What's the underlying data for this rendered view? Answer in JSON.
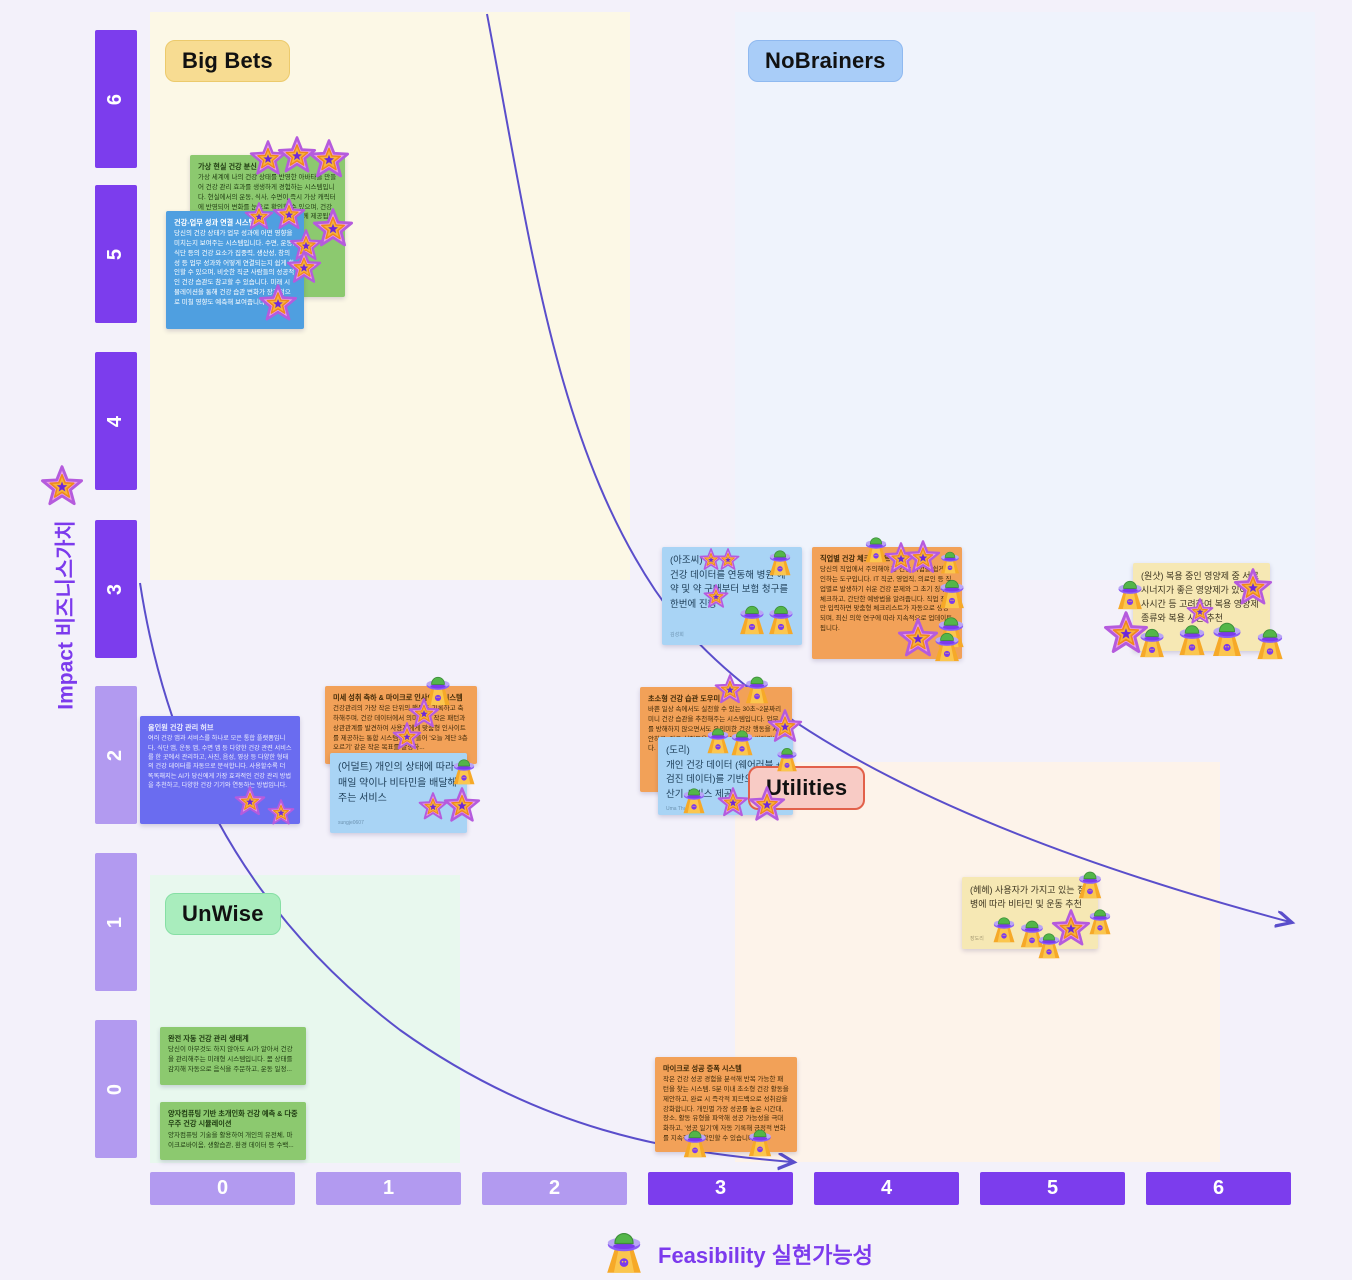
{
  "quadrants": {
    "big_bets": {
      "label": "Big Bets",
      "color": "#f7dc92"
    },
    "nobrainers": {
      "label": "NoBrainers",
      "color": "#a9cdf8"
    },
    "unwise": {
      "label": "UnWise",
      "color": "#a9edbd"
    },
    "utilities": {
      "label": "Utilities",
      "color": "#f8cbc5"
    }
  },
  "axes": {
    "y": {
      "label_en": "Impact",
      "label_ko": "비즈니스가치",
      "ticks": [
        "6",
        "5",
        "4",
        "3",
        "2",
        "1",
        "0"
      ],
      "dark_color": "#7c3ded",
      "light_color": "#b29af0"
    },
    "x": {
      "label_en": "Feasibility",
      "label_ko": "실현가능성",
      "ticks": [
        "0",
        "1",
        "2",
        "3",
        "4",
        "5",
        "6"
      ]
    }
  },
  "icons": {
    "star": "star-sticker",
    "ufo": "ufo-sticker"
  },
  "curve_color": "#5a4ecb",
  "notes": [
    {
      "title": "가상 현실 건강 분신",
      "body": "가상 세계에 나의 건강 상태를 반영한 아바타를 만들어 건강 관리 효과를 생생하게 경험하는 시스템입니다. 현실에서의 운동, 식사, 수면이 즉시 가상 캐릭터에 반영되어 변화를 눈으로 확인할 수 있으며, 건강 목표를 달성하도록 돕는 가상 코치도 함께 제공됩니다.",
      "author": "",
      "color": "green"
    },
    {
      "title": "건강-업무 성과 연결 시스템",
      "body": "당신의 건강 상태가 업무 성과에 어떤 영향을 미치는지 보여주는 시스템입니다. 수면, 운동, 식단 등의 건강 요소가 집중력, 생산성, 창의성 등 업무 성과와 어떻게 연결되는지 쉽게 확인할 수 있으며, 비슷한 직군 사람들의 성공적인 건강 습관도 참고할 수 있습니다. 미래 시뮬레이션을 통해 건강 습관 변화가 장기적으로 미칠 영향도 예측해 보여줍니다.",
      "author": "",
      "color": "blue"
    },
    {
      "title": "",
      "body": "(아조씨)\n건강 데이터를 연동해 병원 예약 및 약 구매부터 보험 청구를 한번에 진행",
      "author": "김성희",
      "color": "lblue"
    },
    {
      "title": "직업별 건강 체크리스트",
      "body": "당신의 직업에서 주의해야 할 건강 위험을 쉽게 확인하는 도구입니다. IT 직군, 영업직, 의료인 등 직업별로 발생하기 쉬운 건강 문제와 그 초기 징후를 체크하고, 간단한 예방법을 알려줍니다. 직업 정보만 입력하면 맞춤형 체크리스트가 자동으로 생성되며, 최신 의학 연구에 따라 지속적으로 업데이트됩니다.",
      "author": "",
      "color": "orange"
    },
    {
      "title": "",
      "body": "(원샷) 복용 중인 영양제 중 서로 시너지가 좋은 영양제가 있어 식사시간 등 고려하여 복용 영양제 종류와 복용 시간 추천",
      "author": "",
      "color": "yellow"
    },
    {
      "title": "미세 성취 축하 & 마이크로 인사이트 시스템",
      "body": "건강관리의 가장 작은 단위의 행동도 기록하고 축하해주며, 건강 데이터에서 의미 있는 작은 패턴과 상관관계를 발견하여 사용자에게 맞춤형 인사이트를 제공하는 통합 시스템. 예를 들어 '오늘 계단 3층 오르기' 같은 작은 목표를 달성하...",
      "author": "",
      "color": "orange"
    },
    {
      "title": "올인원 건강 관리 허브",
      "body": "여러 건강 앱과 서비스를 하나로 모은 통합 플랫폼입니다. 식단 앱, 운동 앱, 수면 앱 등 다양한 건강 관련 서비스를 한 곳에서 관리하고, 사진, 음성, 영상 등 다양한 형태의 건강 데이터를 자동으로 분석합니다. 사용할수록 더 똑똑해지는 AI가 당신에게 가장 효과적인 건강 관리 방법을 추천하고, 다양한 건강 기기와 연동하는 방법입니다.",
      "author": "",
      "color": "violet"
    },
    {
      "title": "",
      "body": "(어덜트) 개인의 상태에 따라 매일 약이나 비타민을 배달해주는 서비스",
      "author": "sungje0607",
      "color": "lblue"
    },
    {
      "title": "초소형 건강 습관 도우미",
      "body": "바쁜 일상 속에서도 실천할 수 있는 30초~2분짜리 미니 건강 습관을 추천해주는 시스템입니다. 업무를 방해하지 않으면서도 유의미한 건강 행동을 제안하고, 작은 실천들을 기록해 성취감을 쌓아갑니다.",
      "author": "",
      "color": "orange"
    },
    {
      "title": "",
      "body": "(도리)\n개인 건강 데이터 (웨어러블 + 검진 데이터)를 기반으로 한 계산기 서비스 제공",
      "author": "Uma Thurman",
      "color": "lblue"
    },
    {
      "title": "",
      "body": "(헤헤) 사용자가 가지고 있는 질병에 따라 비타민 및 운동 추천",
      "author": "장도리",
      "color": "yellow"
    },
    {
      "title": "완전 자동 건강 관리 생태계",
      "body": "당신이 아무것도 하지 않아도 AI가 알아서 건강을 관리해주는 미래형 시스템입니다. 몸 상태를 감지해 자동으로 음식을 주문하고, 운동 일정...",
      "author": "",
      "color": "green"
    },
    {
      "title": "양자컴퓨팅 기반 초개인화 건강 예측 & 다중우주 건강 시뮬레이션",
      "body": "양자컴퓨팅 기술을 활용하여 개인의 유전체, 마이크로바이옴, 생활습관, 환경 데이터 등 수백...",
      "author": "",
      "color": "green"
    },
    {
      "title": "마이크로 성공 증폭 시스템",
      "body": "작은 건강 성공 경험을 분석해 반복 가능한 패턴을 찾는 시스템. 5분 이내 초소형 건강 활동을 제안하고, 완료 시 즉각적 피드백으로 성취감을 강화합니다. 개인별 가장 성공률 높은 시간대, 장소, 활동 유형을 파악해 성공 가능성을 극대화하고, '성공 일기'에 자동 기록해 긍정적 변화를 지속적으로 확인할 수 있습니다.",
      "author": "",
      "color": "orange"
    }
  ]
}
